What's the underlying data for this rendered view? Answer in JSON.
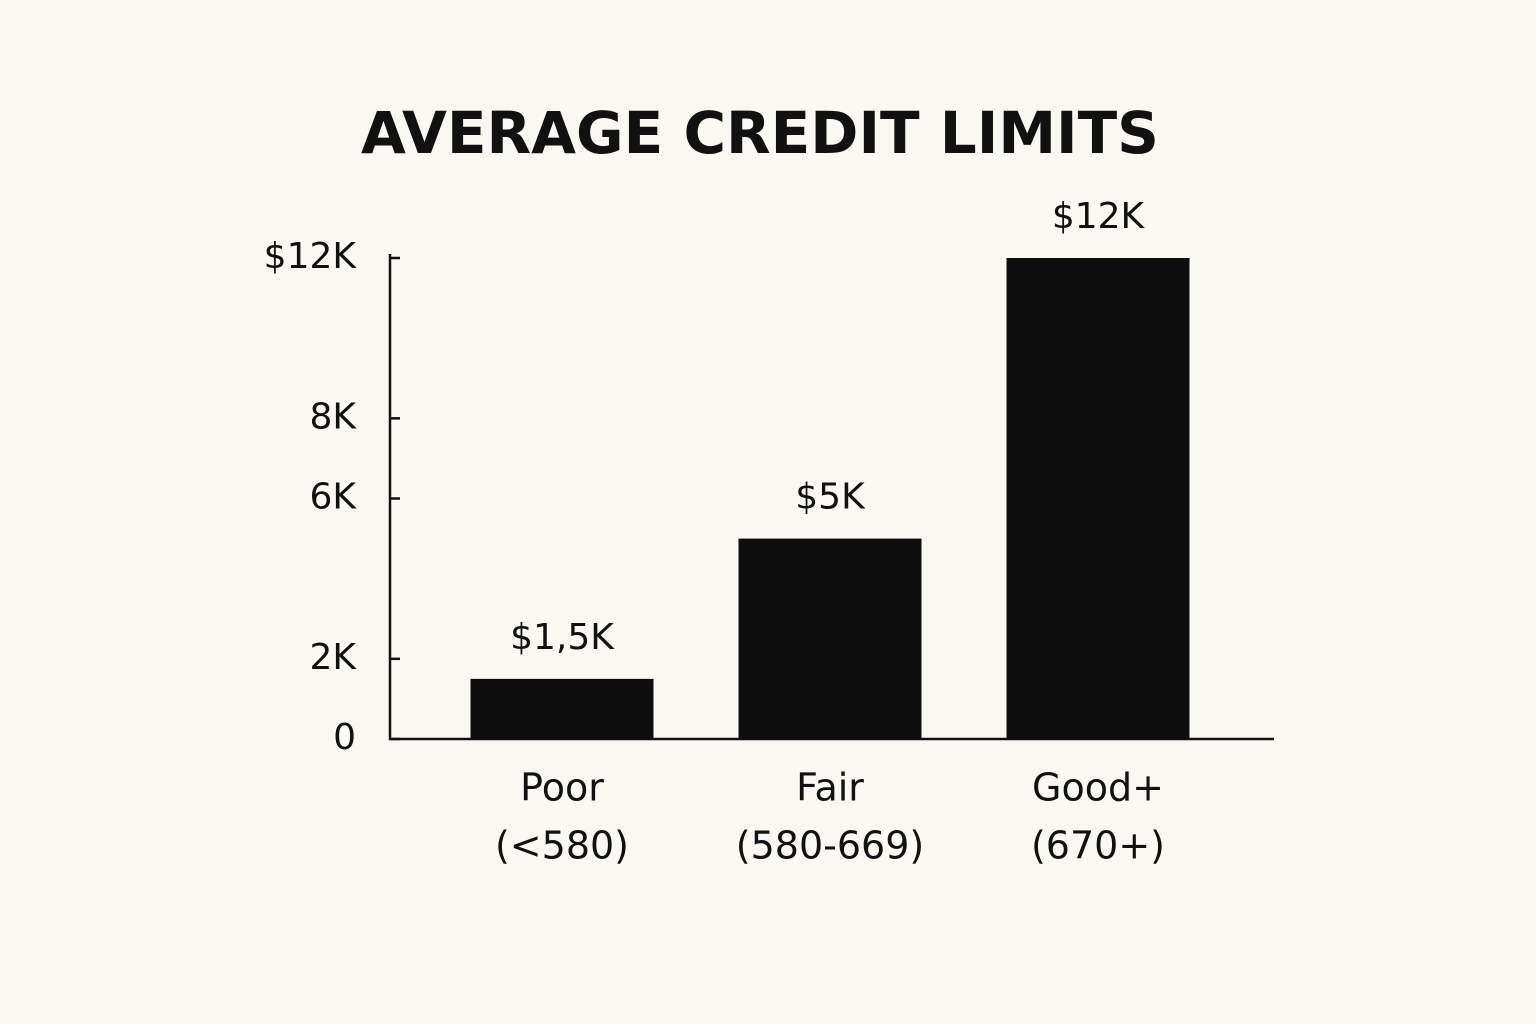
{
  "chart_data": {
    "type": "bar",
    "title": "AVERAGE CREDIT LIMITS",
    "categories": [
      [
        "Poor",
        "(<580)"
      ],
      [
        "Fair",
        "(580-669)"
      ],
      [
        "Good+",
        "(670+)"
      ]
    ],
    "values": [
      1500,
      5000,
      12000
    ],
    "value_labels": [
      "$1,5K",
      "$5K",
      "$12K"
    ],
    "color": "#0d0d0d",
    "ylim": [
      0,
      12000
    ],
    "yticks": [
      0,
      {
        "value": 2000,
        "label": "2K"
      },
      {
        "value": 6000,
        "label": "6K"
      },
      {
        "value": 8000,
        "label": "8K"
      },
      {
        "value": 12000,
        "label": "$12K"
      }
    ],
    "grid": false
  }
}
